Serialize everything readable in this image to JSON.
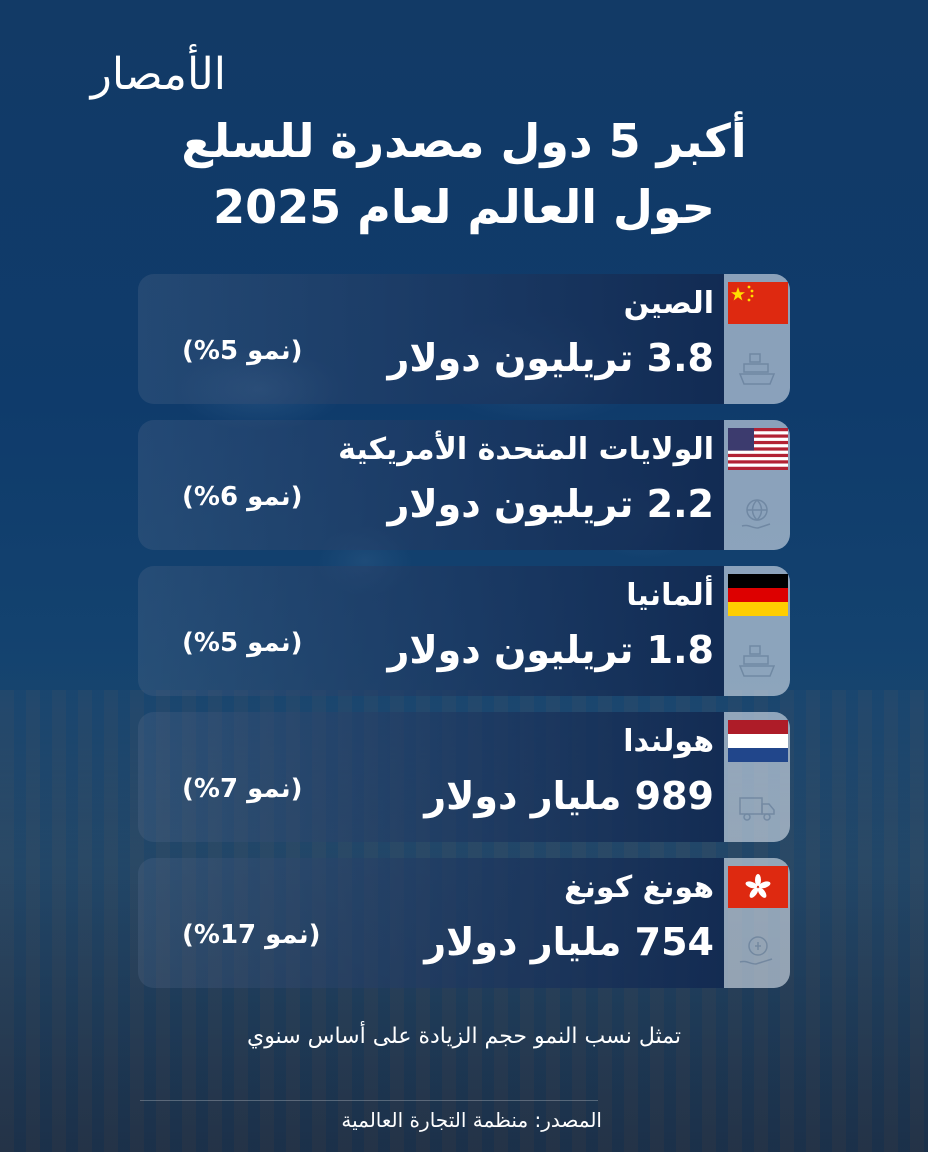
{
  "logo": {
    "text": "الأمصار"
  },
  "title": {
    "line1": "أكبر 5 دول مصدرة للسلع",
    "line2": "حول العالم لعام 2025"
  },
  "cards": [
    {
      "country": "الصين",
      "value": "3.8 تريليون دولار",
      "growth": "(نمو 5%)",
      "flag": "china-flag-icon",
      "icon": "cargo-ship-icon"
    },
    {
      "country": "الولايات المتحدة الأمريكية",
      "value": "2.2 تريليون دولار",
      "growth": "(نمو 6%)",
      "flag": "usa-flag-icon",
      "icon": "globe-hand-icon"
    },
    {
      "country": "ألمانيا",
      "value": "1.8 تريليون دولار",
      "growth": "(نمو 5%)",
      "flag": "germany-flag-icon",
      "icon": "cargo-ship-icon"
    },
    {
      "country": "هولندا",
      "value": "989 مليار دولار",
      "growth": "(نمو 7%)",
      "flag": "netherlands-flag-icon",
      "icon": "truck-icon"
    },
    {
      "country": "هونغ كونغ",
      "value": "754 مليار دولار",
      "growth": "(نمو 17%)",
      "flag": "hong-kong-flag-icon",
      "icon": "hand-coin-icon"
    }
  ],
  "note": "تمثل نسب النمو حجم الزيادة على أساس سنوي",
  "source": "المصدر: منظمة التجارة العالمية",
  "colors": {
    "china_red": "#de2910",
    "china_star": "#ffde00",
    "usa_red": "#b22234",
    "usa_blue": "#3c3b6e",
    "germany_black": "#000000",
    "germany_red": "#dd0000",
    "germany_gold": "#ffce00",
    "nl_red": "#ae1c28",
    "nl_blue": "#21468b"
  }
}
